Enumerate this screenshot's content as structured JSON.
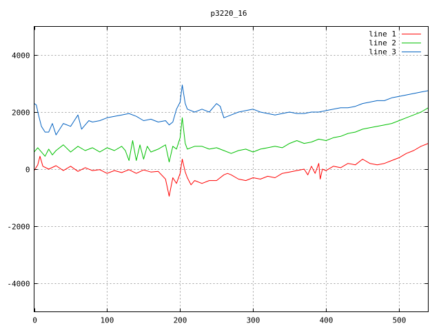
{
  "chart_data": {
    "type": "line",
    "title": "p3220_16",
    "xlabel": "",
    "ylabel": "",
    "xlim": [
      0,
      540
    ],
    "ylim": [
      -5000,
      5000
    ],
    "x_ticks": [
      0,
      100,
      200,
      300,
      400,
      500
    ],
    "y_ticks": [
      -4000,
      -2000,
      0,
      2000,
      4000
    ],
    "grid": true,
    "legend": "top-right",
    "series": [
      {
        "name": "line 1",
        "color": "#ff0000",
        "points": [
          [
            0,
            -50
          ],
          [
            5,
            150
          ],
          [
            8,
            450
          ],
          [
            12,
            100
          ],
          [
            20,
            0
          ],
          [
            30,
            120
          ],
          [
            40,
            -50
          ],
          [
            50,
            100
          ],
          [
            60,
            -80
          ],
          [
            70,
            50
          ],
          [
            80,
            -50
          ],
          [
            90,
            -20
          ],
          [
            100,
            -150
          ],
          [
            110,
            -50
          ],
          [
            120,
            -120
          ],
          [
            130,
            -20
          ],
          [
            140,
            -150
          ],
          [
            150,
            -30
          ],
          [
            160,
            -100
          ],
          [
            170,
            -80
          ],
          [
            180,
            -350
          ],
          [
            185,
            -950
          ],
          [
            190,
            -300
          ],
          [
            195,
            -500
          ],
          [
            200,
            -150
          ],
          [
            203,
            350
          ],
          [
            207,
            -100
          ],
          [
            210,
            -300
          ],
          [
            215,
            -550
          ],
          [
            220,
            -400
          ],
          [
            230,
            -500
          ],
          [
            240,
            -400
          ],
          [
            250,
            -400
          ],
          [
            260,
            -200
          ],
          [
            265,
            -150
          ],
          [
            270,
            -200
          ],
          [
            280,
            -350
          ],
          [
            290,
            -400
          ],
          [
            300,
            -300
          ],
          [
            310,
            -350
          ],
          [
            320,
            -250
          ],
          [
            330,
            -300
          ],
          [
            340,
            -150
          ],
          [
            350,
            -100
          ],
          [
            360,
            -50
          ],
          [
            370,
            0
          ],
          [
            375,
            -200
          ],
          [
            380,
            100
          ],
          [
            385,
            -150
          ],
          [
            390,
            200
          ],
          [
            392,
            -350
          ],
          [
            395,
            0
          ],
          [
            400,
            -50
          ],
          [
            410,
            100
          ],
          [
            420,
            50
          ],
          [
            430,
            200
          ],
          [
            440,
            150
          ],
          [
            450,
            350
          ],
          [
            460,
            200
          ],
          [
            470,
            150
          ],
          [
            480,
            200
          ],
          [
            490,
            300
          ],
          [
            500,
            400
          ],
          [
            510,
            550
          ],
          [
            520,
            650
          ],
          [
            530,
            800
          ],
          [
            540,
            900
          ]
        ]
      },
      {
        "name": "line 2",
        "color": "#00c000",
        "points": [
          [
            0,
            600
          ],
          [
            5,
            750
          ],
          [
            10,
            600
          ],
          [
            15,
            450
          ],
          [
            20,
            700
          ],
          [
            25,
            500
          ],
          [
            30,
            650
          ],
          [
            40,
            850
          ],
          [
            50,
            600
          ],
          [
            60,
            800
          ],
          [
            70,
            650
          ],
          [
            80,
            750
          ],
          [
            90,
            600
          ],
          [
            100,
            750
          ],
          [
            110,
            650
          ],
          [
            120,
            800
          ],
          [
            125,
            650
          ],
          [
            130,
            300
          ],
          [
            135,
            1000
          ],
          [
            140,
            300
          ],
          [
            145,
            850
          ],
          [
            150,
            350
          ],
          [
            155,
            800
          ],
          [
            160,
            600
          ],
          [
            170,
            700
          ],
          [
            180,
            850
          ],
          [
            185,
            250
          ],
          [
            190,
            800
          ],
          [
            195,
            700
          ],
          [
            200,
            1100
          ],
          [
            203,
            1800
          ],
          [
            207,
            900
          ],
          [
            210,
            700
          ],
          [
            220,
            800
          ],
          [
            230,
            800
          ],
          [
            240,
            700
          ],
          [
            250,
            750
          ],
          [
            260,
            650
          ],
          [
            270,
            550
          ],
          [
            280,
            650
          ],
          [
            290,
            700
          ],
          [
            300,
            600
          ],
          [
            310,
            700
          ],
          [
            320,
            750
          ],
          [
            330,
            800
          ],
          [
            340,
            750
          ],
          [
            350,
            900
          ],
          [
            360,
            1000
          ],
          [
            370,
            900
          ],
          [
            380,
            950
          ],
          [
            390,
            1050
          ],
          [
            400,
            1000
          ],
          [
            410,
            1100
          ],
          [
            420,
            1150
          ],
          [
            430,
            1250
          ],
          [
            440,
            1300
          ],
          [
            450,
            1400
          ],
          [
            460,
            1450
          ],
          [
            470,
            1500
          ],
          [
            480,
            1550
          ],
          [
            490,
            1600
          ],
          [
            500,
            1700
          ],
          [
            510,
            1800
          ],
          [
            520,
            1900
          ],
          [
            530,
            2000
          ],
          [
            540,
            2150
          ]
        ]
      },
      {
        "name": "line 3",
        "color": "#0060c0",
        "points": [
          [
            0,
            2300
          ],
          [
            3,
            2250
          ],
          [
            6,
            1900
          ],
          [
            10,
            1500
          ],
          [
            15,
            1300
          ],
          [
            20,
            1300
          ],
          [
            25,
            1600
          ],
          [
            30,
            1200
          ],
          [
            35,
            1400
          ],
          [
            40,
            1600
          ],
          [
            50,
            1500
          ],
          [
            55,
            1700
          ],
          [
            60,
            1900
          ],
          [
            65,
            1400
          ],
          [
            70,
            1550
          ],
          [
            75,
            1700
          ],
          [
            80,
            1650
          ],
          [
            90,
            1700
          ],
          [
            100,
            1800
          ],
          [
            110,
            1850
          ],
          [
            120,
            1900
          ],
          [
            130,
            1950
          ],
          [
            140,
            1850
          ],
          [
            150,
            1700
          ],
          [
            160,
            1750
          ],
          [
            170,
            1650
          ],
          [
            180,
            1700
          ],
          [
            185,
            1550
          ],
          [
            190,
            1650
          ],
          [
            195,
            2100
          ],
          [
            200,
            2350
          ],
          [
            203,
            2950
          ],
          [
            207,
            2300
          ],
          [
            210,
            2100
          ],
          [
            220,
            2000
          ],
          [
            230,
            2100
          ],
          [
            240,
            2000
          ],
          [
            250,
            2300
          ],
          [
            255,
            2200
          ],
          [
            260,
            1800
          ],
          [
            270,
            1900
          ],
          [
            280,
            2000
          ],
          [
            290,
            2050
          ],
          [
            300,
            2100
          ],
          [
            310,
            2000
          ],
          [
            320,
            1950
          ],
          [
            330,
            1900
          ],
          [
            340,
            1950
          ],
          [
            350,
            2000
          ],
          [
            360,
            1950
          ],
          [
            370,
            1950
          ],
          [
            380,
            2000
          ],
          [
            390,
            2000
          ],
          [
            400,
            2050
          ],
          [
            410,
            2100
          ],
          [
            420,
            2150
          ],
          [
            430,
            2150
          ],
          [
            440,
            2200
          ],
          [
            450,
            2300
          ],
          [
            460,
            2350
          ],
          [
            470,
            2400
          ],
          [
            480,
            2400
          ],
          [
            490,
            2500
          ],
          [
            500,
            2550
          ],
          [
            510,
            2600
          ],
          [
            520,
            2650
          ],
          [
            530,
            2700
          ],
          [
            540,
            2750
          ]
        ]
      }
    ]
  }
}
